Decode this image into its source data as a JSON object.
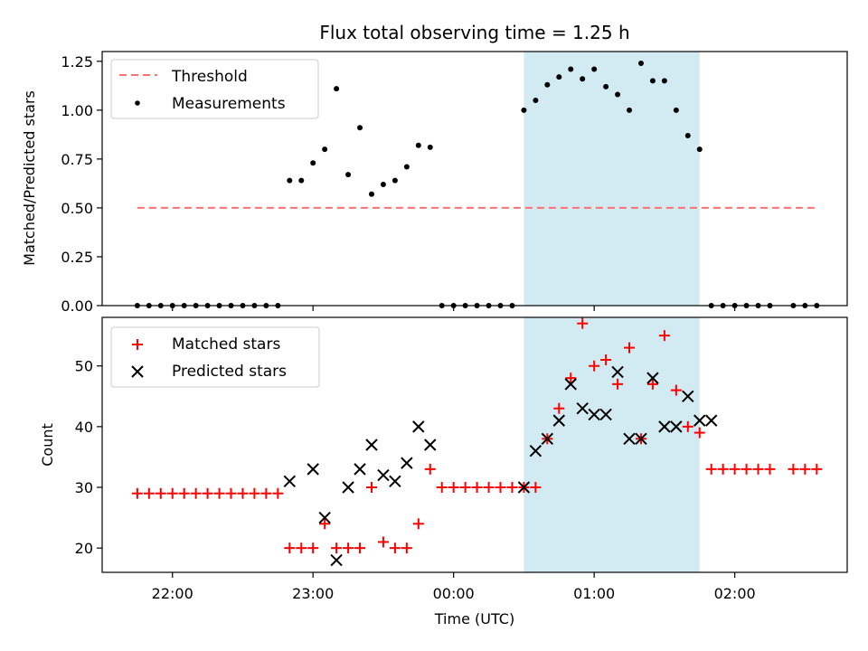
{
  "title": "Flux total observing time = 1.25 h",
  "colors": {
    "threshold": "#ff7070",
    "matched": "#ff0000",
    "predicted": "#000000",
    "measurement": "#000000",
    "highlight": "#add8e6"
  },
  "chart_data": [
    {
      "type": "scatter",
      "ylabel": "Matched/Predicted stars",
      "ylim": [
        0,
        1.3
      ],
      "yticks": [
        "0.00",
        "0.25",
        "0.50",
        "0.75",
        "1.00",
        "1.25"
      ],
      "x_range_hours": [
        -2.5,
        2.8
      ],
      "highlight_span": [
        "00:30",
        "01:45"
      ],
      "legend": {
        "position": "top-left",
        "entries": [
          "Threshold",
          "Measurements"
        ]
      },
      "threshold": {
        "name": "Threshold",
        "value": 0.5,
        "x_start": "21:45",
        "x_end": "02:35"
      },
      "series": [
        {
          "name": "Measurements",
          "x": [
            "21:45",
            "21:50",
            "21:55",
            "22:00",
            "22:05",
            "22:10",
            "22:15",
            "22:20",
            "22:25",
            "22:30",
            "22:35",
            "22:40",
            "22:45",
            "22:50",
            "22:55",
            "23:00",
            "23:05",
            "23:10",
            "23:15",
            "23:20",
            "23:25",
            "23:30",
            "23:35",
            "23:40",
            "23:45",
            "23:50",
            "23:55",
            "00:00",
            "00:05",
            "00:10",
            "00:15",
            "00:20",
            "00:25",
            "00:30",
            "00:35",
            "00:40",
            "00:45",
            "00:50",
            "00:55",
            "01:00",
            "01:05",
            "01:10",
            "01:15",
            "01:20",
            "01:25",
            "01:30",
            "01:35",
            "01:40",
            "01:45",
            "01:50",
            "01:55",
            "02:00",
            "02:05",
            "02:10",
            "02:15",
            "02:25",
            "02:30",
            "02:35"
          ],
          "y": [
            0,
            0,
            0,
            0,
            0,
            0,
            0,
            0,
            0,
            0,
            0,
            0,
            0,
            0.64,
            0.64,
            0.73,
            0.8,
            1.11,
            0.67,
            0.91,
            0.57,
            0.62,
            0.64,
            0.71,
            0.82,
            0.81,
            0,
            0,
            0,
            0,
            0,
            0,
            0,
            1.0,
            1.05,
            1.13,
            1.17,
            1.21,
            1.16,
            1.21,
            1.12,
            1.08,
            1.0,
            1.24,
            1.15,
            1.15,
            1.0,
            0.87,
            0.8,
            0,
            0,
            0,
            0,
            0,
            0,
            0,
            0,
            0
          ]
        }
      ]
    },
    {
      "type": "scatter",
      "xlabel": "Time (UTC)",
      "ylabel": "Count",
      "ylim": [
        16,
        58
      ],
      "yticks": [
        "20",
        "30",
        "40",
        "50"
      ],
      "xticks": [
        "22:00",
        "23:00",
        "00:00",
        "01:00",
        "02:00"
      ],
      "x_range_hours": [
        -2.5,
        2.8
      ],
      "highlight_span": [
        "00:30",
        "01:45"
      ],
      "legend": {
        "position": "top-left",
        "entries": [
          "Matched stars",
          "Predicted stars"
        ]
      },
      "series": [
        {
          "name": "Matched stars",
          "x": [
            "21:45",
            "21:50",
            "21:55",
            "22:00",
            "22:05",
            "22:10",
            "22:15",
            "22:20",
            "22:25",
            "22:30",
            "22:35",
            "22:40",
            "22:45",
            "22:50",
            "22:55",
            "23:00",
            "23:05",
            "23:10",
            "23:15",
            "23:20",
            "23:25",
            "23:30",
            "23:35",
            "23:40",
            "23:45",
            "23:50",
            "23:55",
            "00:00",
            "00:05",
            "00:10",
            "00:15",
            "00:20",
            "00:25",
            "00:30",
            "00:35",
            "00:40",
            "00:45",
            "00:50",
            "00:55",
            "01:00",
            "01:05",
            "01:10",
            "01:15",
            "01:20",
            "01:25",
            "01:30",
            "01:35",
            "01:40",
            "01:45",
            "01:50",
            "01:55",
            "02:00",
            "02:05",
            "02:10",
            "02:15",
            "02:25",
            "02:30",
            "02:35"
          ],
          "y": [
            29,
            29,
            29,
            29,
            29,
            29,
            29,
            29,
            29,
            29,
            29,
            29,
            29,
            20,
            20,
            20,
            24,
            20,
            20,
            20,
            30,
            21,
            20,
            20,
            24,
            33,
            30,
            30,
            30,
            30,
            30,
            30,
            30,
            30,
            30,
            38,
            43,
            48,
            57,
            50,
            51,
            47,
            53,
            38,
            47,
            55,
            46,
            40,
            39,
            33,
            33,
            33,
            33,
            33,
            33,
            33,
            33,
            33
          ]
        },
        {
          "name": "Predicted stars",
          "x": [
            "22:50",
            "23:00",
            "23:05",
            "23:10",
            "23:15",
            "23:20",
            "23:25",
            "23:30",
            "23:35",
            "23:40",
            "23:45",
            "23:50",
            "00:30",
            "00:35",
            "00:40",
            "00:45",
            "00:50",
            "00:55",
            "01:00",
            "01:05",
            "01:10",
            "01:15",
            "01:20",
            "01:25",
            "01:30",
            "01:35",
            "01:40",
            "01:45",
            "01:50"
          ],
          "y": [
            31,
            33,
            25,
            18,
            30,
            33,
            37,
            32,
            31,
            34,
            40,
            37,
            30,
            36,
            38,
            41,
            47,
            43,
            42,
            42,
            49,
            38,
            38,
            48,
            40,
            40,
            45,
            41,
            41
          ]
        }
      ]
    }
  ]
}
